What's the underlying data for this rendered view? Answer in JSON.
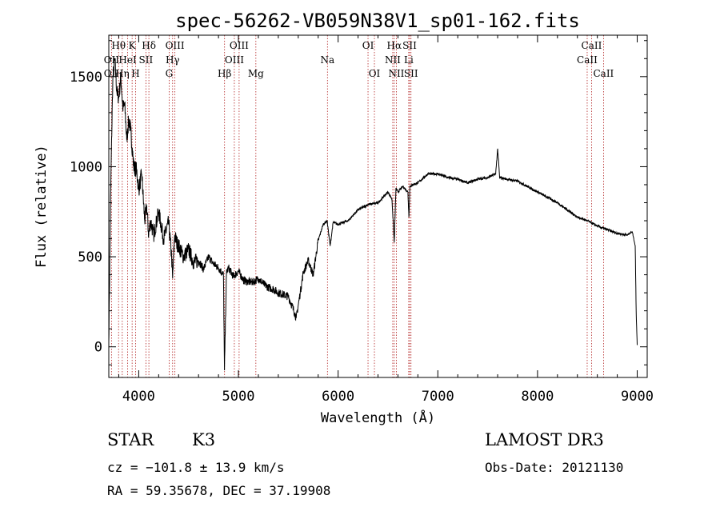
{
  "chart_data": {
    "type": "line",
    "title": "spec-56262-VB059N38V1_sp01-162.fits",
    "xlabel": "Wavelength (Å)",
    "ylabel": "Flux (relative)",
    "xlim": [
      3700,
      9100
    ],
    "ylim": [
      -170,
      1730
    ],
    "xticks": [
      4000,
      5000,
      6000,
      7000,
      8000,
      9000
    ],
    "yticks": [
      0,
      500,
      1000,
      1500
    ],
    "grid": false,
    "line_color": "#000000",
    "marker_color": "#b22222",
    "spectrum": {
      "x": [
        3700,
        3720,
        3740,
        3760,
        3780,
        3800,
        3820,
        3840,
        3860,
        3880,
        3900,
        3920,
        3950,
        3980,
        4000,
        4030,
        4060,
        4080,
        4100,
        4120,
        4150,
        4200,
        4250,
        4300,
        4330,
        4340,
        4360,
        4380,
        4400,
        4450,
        4500,
        4550,
        4600,
        4650,
        4700,
        4750,
        4800,
        4850,
        4860,
        4880,
        4900,
        4950,
        5000,
        5050,
        5100,
        5150,
        5200,
        5250,
        5300,
        5350,
        5400,
        5450,
        5500,
        5550,
        5580,
        5620,
        5650,
        5700,
        5750,
        5800,
        5850,
        5890,
        5920,
        5950,
        6000,
        6100,
        6200,
        6300,
        6400,
        6500,
        6540,
        6563,
        6580,
        6600,
        6650,
        6700,
        6710,
        6720,
        6750,
        6800,
        6900,
        7000,
        7100,
        7200,
        7300,
        7400,
        7500,
        7580,
        7600,
        7620,
        7700,
        7800,
        7900,
        8000,
        8100,
        8200,
        8300,
        8400,
        8500,
        8600,
        8700,
        8800,
        8900,
        8950,
        8980,
        8990,
        9000
      ],
      "y": [
        30,
        900,
        1480,
        1600,
        1420,
        1380,
        1500,
        1330,
        1340,
        1150,
        1260,
        1200,
        1000,
        980,
        870,
        960,
        700,
        780,
        620,
        700,
        620,
        750,
        600,
        690,
        500,
        380,
        620,
        580,
        560,
        500,
        540,
        470,
        480,
        430,
        500,
        460,
        440,
        400,
        -130,
        410,
        440,
        390,
        420,
        370,
        360,
        360,
        380,
        350,
        330,
        320,
        300,
        290,
        280,
        210,
        160,
        300,
        410,
        480,
        400,
        590,
        680,
        700,
        560,
        690,
        680,
        700,
        760,
        790,
        800,
        860,
        820,
        580,
        880,
        860,
        890,
        860,
        720,
        890,
        900,
        910,
        960,
        960,
        940,
        930,
        910,
        930,
        940,
        960,
        1100,
        940,
        930,
        920,
        890,
        860,
        830,
        800,
        760,
        720,
        700,
        670,
        650,
        630,
        620,
        640,
        560,
        180,
        10
      ]
    },
    "lines": [
      {
        "label": "Hθ",
        "wl": 3798,
        "row": 0
      },
      {
        "label": "OII",
        "wl": 3727,
        "row": 1
      },
      {
        "label": "Hη",
        "wl": 3835,
        "row": 2
      },
      {
        "label": "OII",
        "wl": 3727,
        "row": 2
      },
      {
        "label": "K",
        "wl": 3934,
        "row": 0
      },
      {
        "label": "H",
        "wl": 3969,
        "row": 2
      },
      {
        "label": "HeI",
        "wl": 3889,
        "row": 1
      },
      {
        "label": "SII",
        "wl": 4072,
        "row": 1
      },
      {
        "label": "Hδ",
        "wl": 4102,
        "row": 0
      },
      {
        "label": "OIII",
        "wl": 4363,
        "row": 0
      },
      {
        "label": "Hγ",
        "wl": 4340,
        "row": 1
      },
      {
        "label": "G",
        "wl": 4305,
        "row": 2
      },
      {
        "label": "Hβ",
        "wl": 4861,
        "row": 2
      },
      {
        "label": "OIII",
        "wl": 5007,
        "row": 0
      },
      {
        "label": "OIII",
        "wl": 4959,
        "row": 1
      },
      {
        "label": "Mg",
        "wl": 5175,
        "row": 2
      },
      {
        "label": "Na",
        "wl": 5893,
        "row": 1
      },
      {
        "label": "OI",
        "wl": 6300,
        "row": 0
      },
      {
        "label": "OI",
        "wl": 6364,
        "row": 2
      },
      {
        "label": "Hα",
        "wl": 6563,
        "row": 0
      },
      {
        "label": "NII",
        "wl": 6548,
        "row": 1
      },
      {
        "label": "NII",
        "wl": 6584,
        "row": 2
      },
      {
        "label": "SII",
        "wl": 6717,
        "row": 0
      },
      {
        "label": "Li",
        "wl": 6708,
        "row": 1
      },
      {
        "label": "SII",
        "wl": 6731,
        "row": 2
      },
      {
        "label": "CaII",
        "wl": 8542,
        "row": 0
      },
      {
        "label": "CaII",
        "wl": 8498,
        "row": 1
      },
      {
        "label": "CaII",
        "wl": 8662,
        "row": 2
      }
    ]
  },
  "info": {
    "object_class": "STAR",
    "subclass": "K3",
    "survey": "LAMOST DR3",
    "cz": "cz = −101.8 ± 13.9 km/s",
    "obs_date": "Obs-Date: 20121130",
    "coords": "RA =  59.35678, DEC =  37.19908"
  }
}
